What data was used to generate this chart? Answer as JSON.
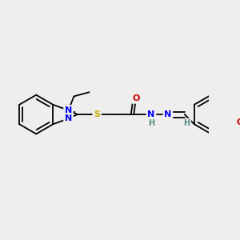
{
  "bg_color": "#eeeeee",
  "atom_colors": {
    "N": "#0000ff",
    "O": "#cc0000",
    "S": "#ccaa00",
    "C": "#000000",
    "H": "#558888"
  },
  "bond_color": "#000000",
  "lw": 1.3
}
